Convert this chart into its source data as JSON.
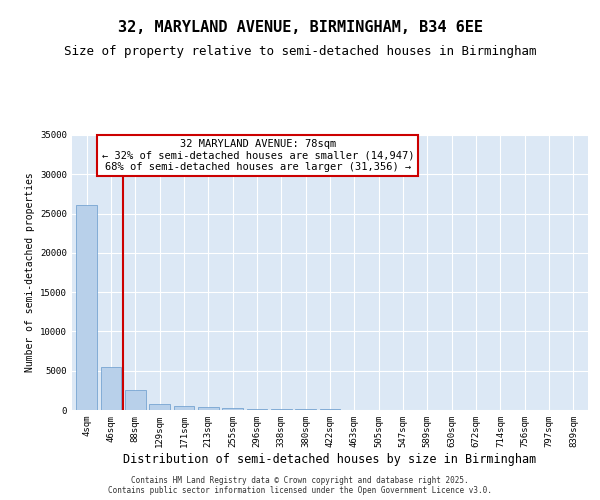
{
  "title": "32, MARYLAND AVENUE, BIRMINGHAM, B34 6EE",
  "subtitle": "Size of property relative to semi-detached houses in Birmingham",
  "xlabel": "Distribution of semi-detached houses by size in Birmingham",
  "ylabel": "Number of semi-detached properties",
  "property_label": "32 MARYLAND AVENUE: 78sqm",
  "smaller_label": "← 32% of semi-detached houses are smaller (14,947)",
  "larger_label": "68% of semi-detached houses are larger (31,356) →",
  "categories": [
    "4sqm",
    "46sqm",
    "88sqm",
    "129sqm",
    "171sqm",
    "213sqm",
    "255sqm",
    "296sqm",
    "338sqm",
    "380sqm",
    "422sqm",
    "463sqm",
    "505sqm",
    "547sqm",
    "589sqm",
    "630sqm",
    "672sqm",
    "714sqm",
    "756sqm",
    "797sqm",
    "839sqm"
  ],
  "values": [
    26100,
    5500,
    2500,
    800,
    500,
    350,
    250,
    180,
    130,
    90,
    70,
    50,
    35,
    25,
    20,
    15,
    10,
    8,
    6,
    4,
    2
  ],
  "bar_color": "#b8d0ea",
  "bar_edge_color": "#6699cc",
  "property_line_x": 1.5,
  "property_line_color": "#cc0000",
  "annotation_box_color": "#cc0000",
  "background_color": "#dce8f5",
  "ylim": [
    0,
    35000
  ],
  "yticks": [
    0,
    5000,
    10000,
    15000,
    20000,
    25000,
    30000,
    35000
  ],
  "footer_line1": "Contains HM Land Registry data © Crown copyright and database right 2025.",
  "footer_line2": "Contains public sector information licensed under the Open Government Licence v3.0.",
  "title_fontsize": 11,
  "subtitle_fontsize": 9,
  "annotation_fontsize": 7.5,
  "tick_fontsize": 6.5,
  "ylabel_fontsize": 7,
  "xlabel_fontsize": 8.5,
  "footer_fontsize": 5.5
}
